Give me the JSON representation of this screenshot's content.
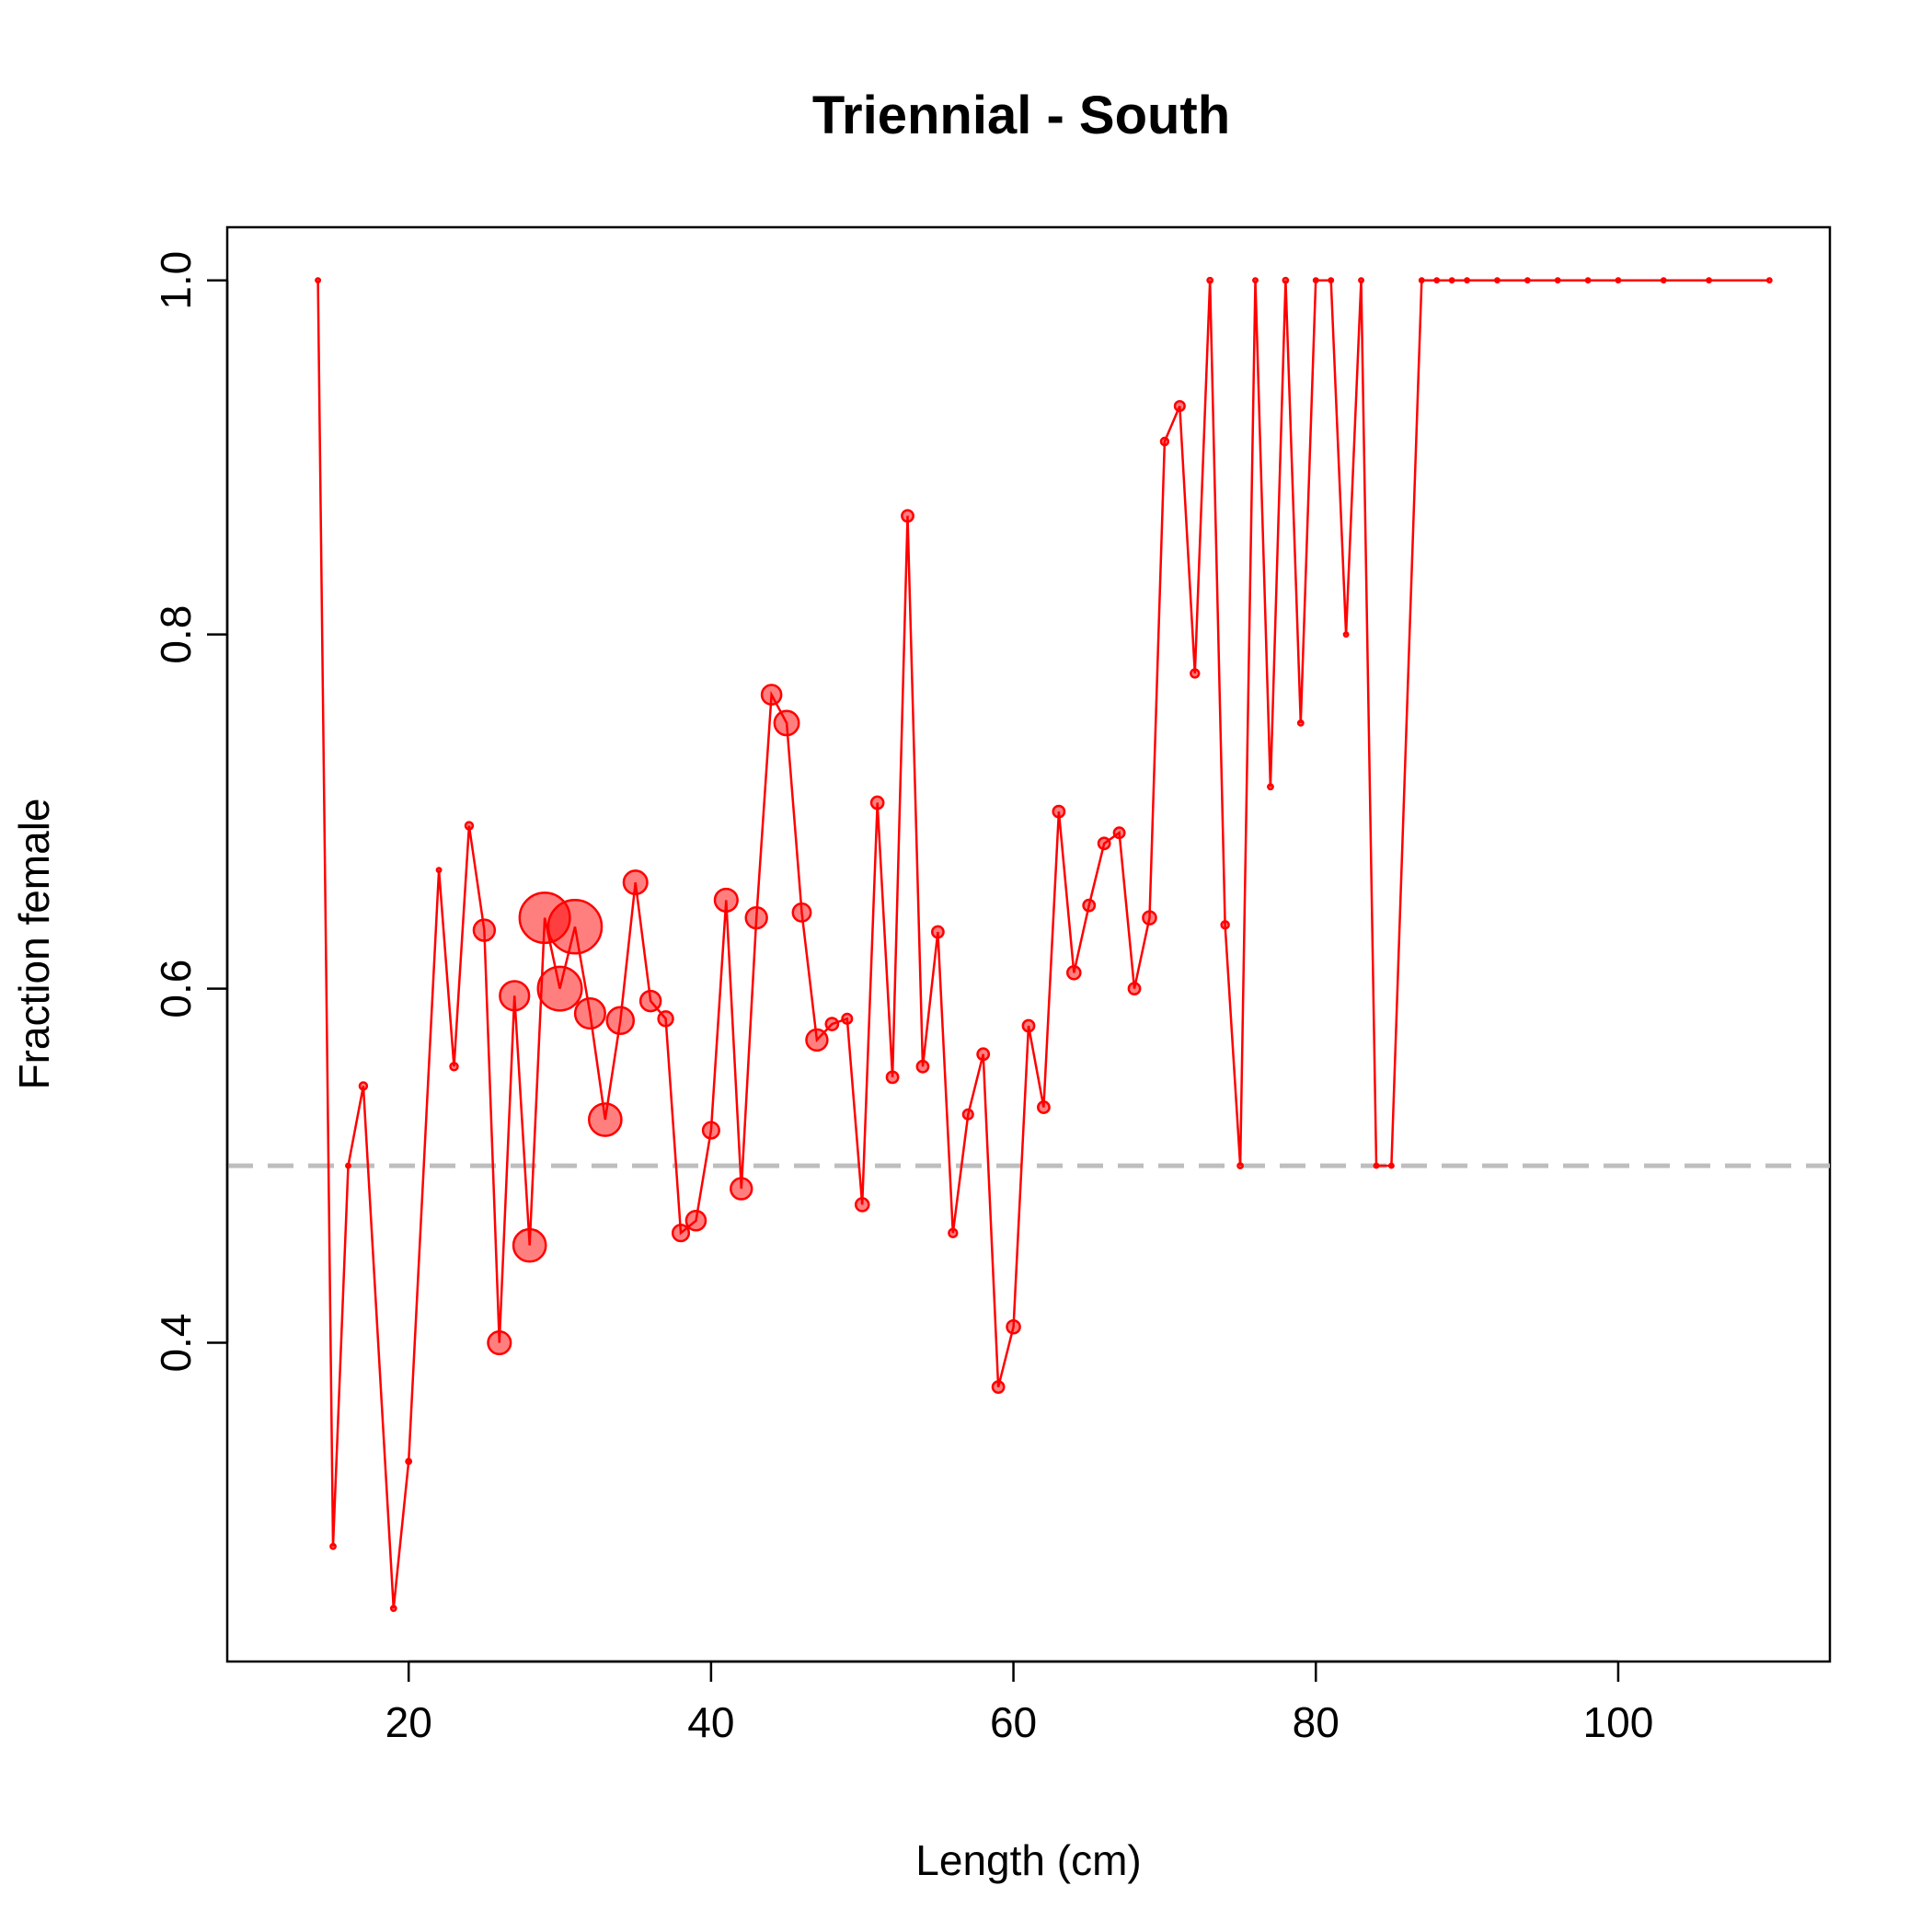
{
  "chart_data": {
    "type": "scatter",
    "title": "Triennial - South",
    "xlabel": "Length (cm)",
    "ylabel": "Fraction female",
    "xlim": [
      8,
      114
    ],
    "ylim": [
      0.22,
      1.03
    ],
    "x_ticks": [
      20,
      40,
      60,
      80,
      100
    ],
    "y_ticks": [
      0.4,
      0.6,
      0.8,
      1.0
    ],
    "x_tick_labels": [
      "20",
      "40",
      "60",
      "80",
      "100"
    ],
    "y_tick_labels": [
      "0.4",
      "0.6",
      "0.8",
      "1.0"
    ],
    "reference_line": {
      "y": 0.5,
      "style": "dashed",
      "color": "#bebebe"
    },
    "grid": false,
    "legend": "none",
    "colors": {
      "line": "#ff0000",
      "point_fill": "#ff000080",
      "point_edge": "#ff0000"
    },
    "series": [
      {
        "x": [
          14,
          15,
          16,
          17,
          19,
          20,
          22,
          23,
          24,
          25,
          26,
          27,
          28,
          29,
          30,
          31,
          32,
          33,
          34,
          35,
          36,
          37,
          38,
          39,
          40,
          41,
          42,
          43,
          44,
          45,
          46,
          47,
          48,
          49,
          50,
          51,
          52,
          53,
          54,
          55,
          56,
          57,
          58,
          59,
          60,
          61,
          62,
          63,
          64,
          65,
          66,
          67,
          68,
          69,
          70,
          71,
          72,
          73,
          74,
          75,
          76,
          77,
          78,
          79,
          80,
          81,
          82,
          83,
          84,
          85,
          87,
          88,
          89,
          90,
          92,
          94,
          96,
          98,
          100,
          103,
          106,
          110
        ],
        "y": [
          1.0,
          0.285,
          0.5,
          0.545,
          0.25,
          0.333,
          0.667,
          0.556,
          0.692,
          0.633,
          0.4,
          0.596,
          0.455,
          0.64,
          0.6,
          0.635,
          0.586,
          0.526,
          0.582,
          0.66,
          0.593,
          0.583,
          0.462,
          0.469,
          0.52,
          0.65,
          0.487,
          0.64,
          0.766,
          0.75,
          0.643,
          0.571,
          0.58,
          0.583,
          0.478,
          0.705,
          0.55,
          0.867,
          0.556,
          0.632,
          0.462,
          0.529,
          0.563,
          0.375,
          0.409,
          0.579,
          0.533,
          0.7,
          0.609,
          0.647,
          0.682,
          0.688,
          0.6,
          0.64,
          0.909,
          0.929,
          0.778,
          1.0,
          0.636,
          0.5,
          1.0,
          0.714,
          1.0,
          0.75,
          1.0,
          1.0,
          0.8,
          1.0,
          0.5,
          0.5,
          1.0,
          1.0,
          1.0,
          1.0,
          1.0,
          1.0,
          1.0,
          1.0,
          1.0,
          1.0,
          1.0,
          1.0
        ],
        "size": [
          0.3,
          0.6,
          0.4,
          0.9,
          0.6,
          0.6,
          0.3,
          0.9,
          0.9,
          2.6,
          2.8,
          3.6,
          4.0,
          6.2,
          5.4,
          6.6,
          3.7,
          4.0,
          3.3,
          2.9,
          2.5,
          1.8,
          2.0,
          2.4,
          2.0,
          2.8,
          2.6,
          2.6,
          2.4,
          3.0,
          2.2,
          2.6,
          1.5,
          1.2,
          1.6,
          1.5,
          1.4,
          1.4,
          1.4,
          1.4,
          1.0,
          1.2,
          1.4,
          1.4,
          1.6,
          1.4,
          1.4,
          1.4,
          1.6,
          1.4,
          1.4,
          1.3,
          1.4,
          1.6,
          0.9,
          1.2,
          1.0,
          0.6,
          0.9,
          0.6,
          0.5,
          0.6,
          0.6,
          0.6,
          0.4,
          0.4,
          0.5,
          0.4,
          0.5,
          0.5,
          0.4,
          0.4,
          0.4,
          0.4,
          0.4,
          0.4,
          0.4,
          0.4,
          0.4,
          0.4,
          0.4,
          0.4
        ]
      }
    ]
  }
}
